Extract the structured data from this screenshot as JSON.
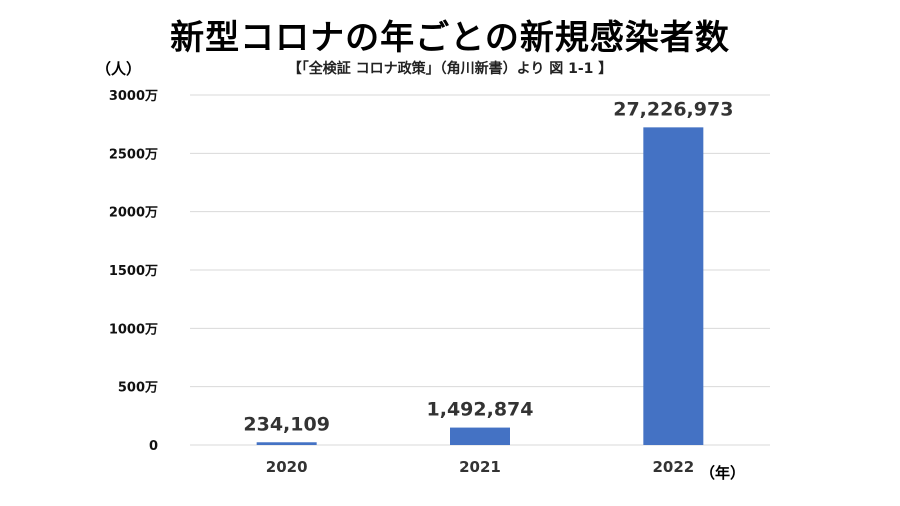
{
  "chart_data": {
    "type": "bar",
    "title": "新型コロナの年ごとの新規感染者数",
    "subtitle": "【「全検証 コロナ政策」（角川新書）より 図 1-1 】",
    "ylabel": "（人）",
    "xlabel": "（年）",
    "categories": [
      "2020",
      "2021",
      "2022"
    ],
    "values": [
      234109,
      1492874,
      27226973
    ],
    "data_labels": [
      "234,109",
      "1,492,874",
      "27,226,973"
    ],
    "ylim": [
      0,
      30000000
    ],
    "yticks": [
      0,
      5000000,
      10000000,
      15000000,
      20000000,
      25000000,
      30000000
    ],
    "ytick_labels": [
      "0",
      "500万",
      "1000万",
      "1500万",
      "2000万",
      "2500万",
      "3000万"
    ],
    "grid": true,
    "bar_color": "#4472C4",
    "grid_color": "#d9d9d9"
  }
}
